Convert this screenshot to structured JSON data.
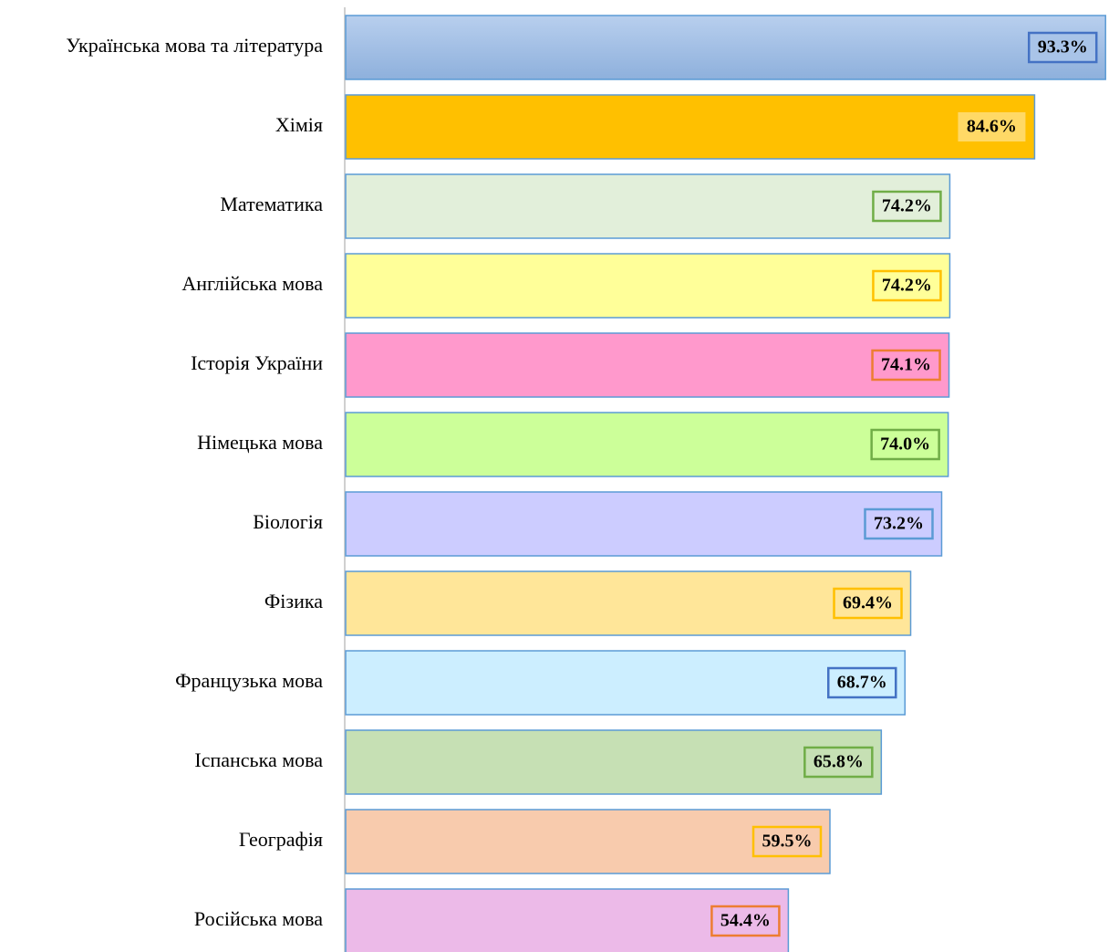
{
  "chart_data": {
    "type": "hbar",
    "categories": [
      "Українська мова та література",
      "Хімія",
      "Математика",
      "Англійська мова",
      "Історія України",
      "Німецька мова",
      "Біологія",
      "Фізика",
      "Французька мова",
      "Іспанська мова",
      "Географія",
      "Російська мова"
    ],
    "values": [
      93.3,
      84.6,
      74.2,
      74.2,
      74.1,
      74.0,
      73.2,
      69.4,
      68.7,
      65.8,
      59.5,
      54.4
    ],
    "value_labels": [
      "93.3%",
      "84.6%",
      "74.2%",
      "74.2%",
      "74.1%",
      "74.0%",
      "73.2%",
      "69.4%",
      "68.7%",
      "65.8%",
      "59.5%",
      "54.4%"
    ],
    "colors": [
      "#a9c4e8",
      "#ffc000",
      "#e2efda",
      "#ffff99",
      "#ff99cc",
      "#ccff99",
      "#ccccff",
      "#ffe699",
      "#cceeff",
      "#c6e0b4",
      "#f8cbad",
      "#ecbae8"
    ],
    "label_borders": [
      "#4472c4",
      "#ffc000",
      "#70ad47",
      "#ffc000",
      "#ed7d31",
      "#70ad47",
      "#5b9bd5",
      "#ffc000",
      "#4472c4",
      "#70ad47",
      "#ffc000",
      "#ed7d31"
    ],
    "xlim": [
      0,
      93.5
    ]
  }
}
